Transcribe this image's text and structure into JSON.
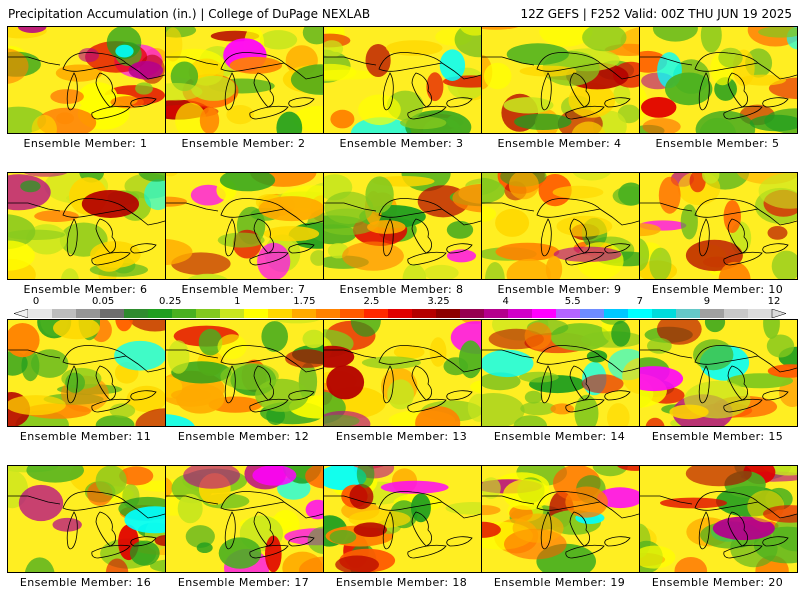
{
  "header": {
    "title": "Precipitation Accumulation (in.) | College of DuPage NEXLAB",
    "valid": "12Z GEFS | F252 Valid: 00Z THU JUN 19 2025"
  },
  "members": [
    {
      "label": "Ensemble Member: 1",
      "seed": 11
    },
    {
      "label": "Ensemble Member: 2",
      "seed": 23
    },
    {
      "label": "Ensemble Member: 3",
      "seed": 37
    },
    {
      "label": "Ensemble Member: 4",
      "seed": 41
    },
    {
      "label": "Ensemble Member: 5",
      "seed": 53
    },
    {
      "label": "Ensemble Member: 6",
      "seed": 67
    },
    {
      "label": "Ensemble Member: 7",
      "seed": 71
    },
    {
      "label": "Ensemble Member: 8",
      "seed": 83
    },
    {
      "label": "Ensemble Member: 9",
      "seed": 97
    },
    {
      "label": "Ensemble Member: 10",
      "seed": 101
    },
    {
      "label": "Ensemble Member: 11",
      "seed": 113
    },
    {
      "label": "Ensemble Member: 12",
      "seed": 127
    },
    {
      "label": "Ensemble Member: 13",
      "seed": 131
    },
    {
      "label": "Ensemble Member: 14",
      "seed": 149
    },
    {
      "label": "Ensemble Member: 15",
      "seed": 151
    },
    {
      "label": "Ensemble Member: 16",
      "seed": 163
    },
    {
      "label": "Ensemble Member: 17",
      "seed": 173
    },
    {
      "label": "Ensemble Member: 18",
      "seed": 181
    },
    {
      "label": "Ensemble Member: 19",
      "seed": 191
    },
    {
      "label": "Ensemble Member: 20",
      "seed": 199
    }
  ],
  "colorbar": {
    "labels": [
      "0",
      "0.05",
      "0.25",
      "1",
      "1.75",
      "2.5",
      "3.25",
      "4",
      "5.5",
      "7",
      "9",
      "12"
    ],
    "colors": [
      "#e6e6e6",
      "#bdbdbd",
      "#969696",
      "#6e6e6e",
      "#2e8b2e",
      "#1f9e1f",
      "#49b020",
      "#82c81e",
      "#c8e61e",
      "#ffff00",
      "#ffd700",
      "#ffaa00",
      "#ff8200",
      "#ff5a00",
      "#ff2800",
      "#e10000",
      "#b40000",
      "#8c0000",
      "#960050",
      "#b4008c",
      "#d200c8",
      "#ff00ff",
      "#b464ff",
      "#6e8cff",
      "#00c8ff",
      "#00ffff",
      "#00dcdc",
      "#64c8c8",
      "#a0a0a0",
      "#c8c8c8",
      "#dcdcdc"
    ]
  }
}
